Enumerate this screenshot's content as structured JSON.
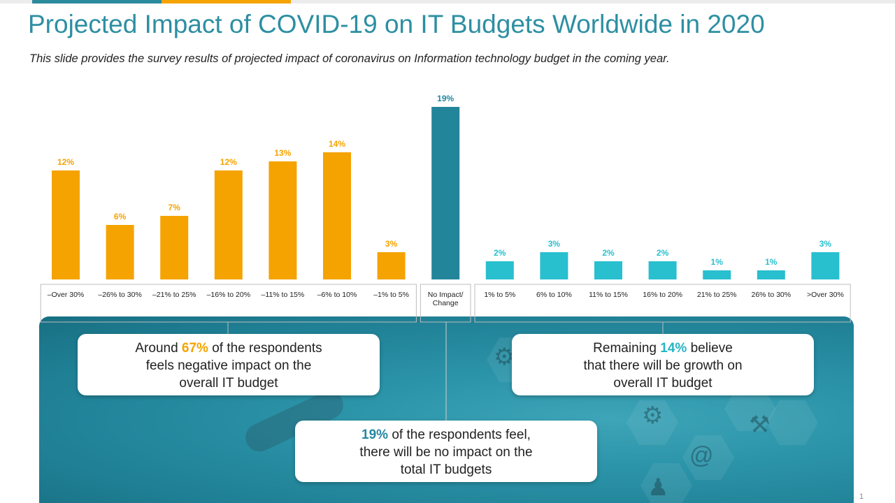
{
  "header": {
    "title": "Projected Impact of COVID-19 on IT Budgets Worldwide in 2020",
    "subtitle": "This slide provides the survey results of projected impact of coronavirus on Information technology budget in the coming year."
  },
  "colors": {
    "negative": "#f5a300",
    "neutral": "#23859a",
    "positive": "#28bfcf",
    "title": "#2d8fa2"
  },
  "chart_data": {
    "type": "bar",
    "categories": [
      "–Over 30%",
      "–26% to 30%",
      "–21% to 25%",
      "–16% to 20%",
      "–11% to 15%",
      "–6% to 10%",
      "–1% to 5%",
      "No Impact/ Change",
      "1% to 5%",
      "6% to 10%",
      "11% to 15%",
      "16% to 20%",
      "21% to 25%",
      "26% to 30%",
      ">Over 30%"
    ],
    "values": [
      12,
      6,
      7,
      12,
      13,
      14,
      3,
      19,
      2,
      3,
      2,
      2,
      1,
      1,
      3
    ],
    "data_labels": [
      "12%",
      "6%",
      "7%",
      "12%",
      "13%",
      "14%",
      "3%",
      "19%",
      "2%",
      "3%",
      "2%",
      "2%",
      "1%",
      "1%",
      "3%"
    ],
    "groups": [
      "negative",
      "negative",
      "negative",
      "negative",
      "negative",
      "negative",
      "negative",
      "neutral",
      "positive",
      "positive",
      "positive",
      "positive",
      "positive",
      "positive",
      "positive"
    ],
    "title": "",
    "xlabel": "",
    "ylabel": "",
    "ylim": [
      0,
      19
    ],
    "grid": false
  },
  "callouts": {
    "negative": {
      "pre": "Around ",
      "highlight": "67%",
      "post": " of the respondents",
      "line2": "feels negative impact on the",
      "line3": "overall IT budget"
    },
    "positive": {
      "pre": "Remaining ",
      "highlight": "14%",
      "post": " believe",
      "line2": "that there will be growth on",
      "line3": "overall IT budget"
    },
    "neutral": {
      "pre": "",
      "highlight": "19%",
      "post": " of the respondents feel,",
      "line2": "there will be no impact on the",
      "line3": "total IT budgets"
    }
  },
  "footer": {
    "page_number": "1"
  }
}
